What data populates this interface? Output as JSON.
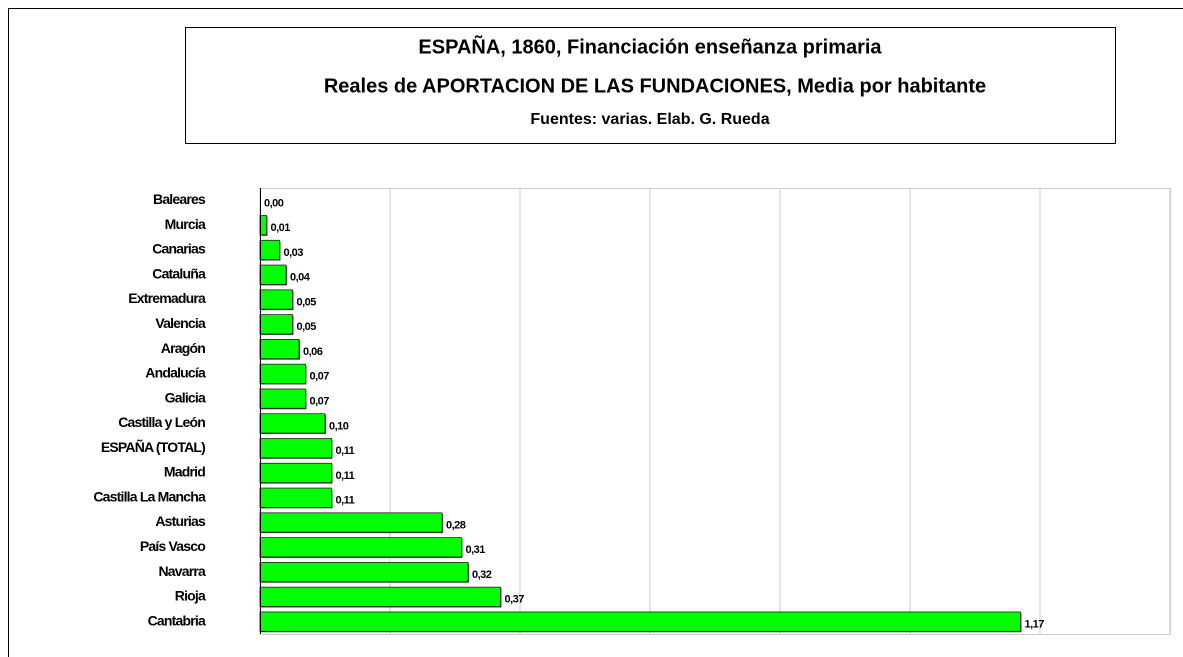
{
  "chart_data": {
    "type": "barh",
    "title": "ESPAÑA, 1860, Financiación enseñanza primaria",
    "subtitle": "Reales de APORTACION DE LAS FUNDACIONES, Media por habitante",
    "source": "Fuentes: varias. Elab. G. Rueda",
    "categories": [
      "Baleares",
      "Murcia",
      "Canarias",
      "Cataluña",
      "Extremadura",
      "Valencia",
      "Aragón",
      "Andalucía",
      "Galicia",
      "Castilla y León",
      "ESPAÑA (TOTAL)",
      "Madrid",
      "Castilla La Mancha",
      "Asturias",
      "País Vasco",
      "Navarra",
      "Rioja",
      "Cantabria"
    ],
    "values": [
      0.0,
      0.01,
      0.03,
      0.04,
      0.05,
      0.05,
      0.06,
      0.07,
      0.07,
      0.1,
      0.11,
      0.11,
      0.11,
      0.28,
      0.31,
      0.32,
      0.37,
      1.17
    ],
    "value_labels": [
      "0,00",
      "0,01",
      "0,03",
      "0,04",
      "0,05",
      "0,05",
      "0,06",
      "0,07",
      "0,07",
      "0,10",
      "0,11",
      "0,11",
      "0,11",
      "0,28",
      "0,31",
      "0,32",
      "0,37",
      "1,17"
    ],
    "color": "#00ff00",
    "xlim": [
      0,
      1.4
    ],
    "xticks": [
      0,
      0.2,
      0.4,
      0.6,
      0.8,
      1.0,
      1.2,
      1.4
    ],
    "grid": true
  }
}
